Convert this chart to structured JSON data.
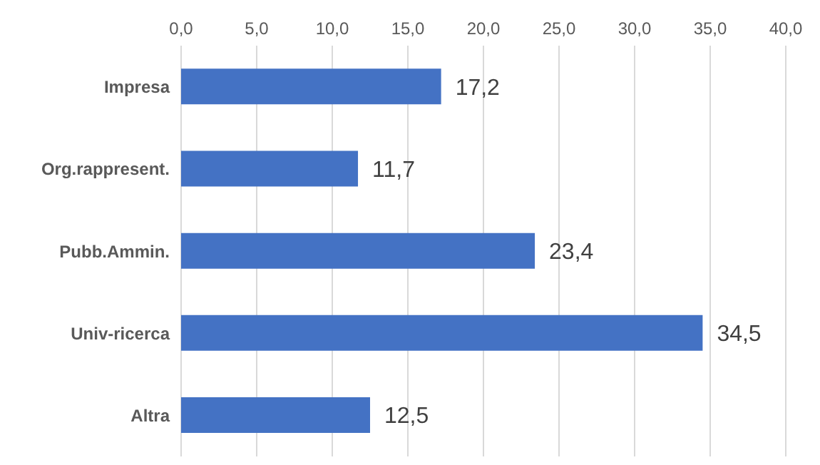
{
  "chart_data": {
    "type": "bar",
    "orientation": "horizontal",
    "categories": [
      "Impresa",
      "Org.rappresent.",
      "Pubb.Ammin.",
      "Univ-ricerca",
      "Altra"
    ],
    "values": [
      17.2,
      11.7,
      23.4,
      34.5,
      12.5
    ],
    "value_labels": [
      "17,2",
      "11,7",
      "23,4",
      "34,5",
      "12,5"
    ],
    "color": "#4472c4",
    "xlim": [
      0,
      40
    ],
    "xticks": [
      {
        "value": 0,
        "label": "0,0"
      },
      {
        "value": 5,
        "label": "5,0"
      },
      {
        "value": 10,
        "label": "10,0"
      },
      {
        "value": 15,
        "label": "15,0"
      },
      {
        "value": 20,
        "label": "20,0"
      },
      {
        "value": 25,
        "label": "25,0"
      },
      {
        "value": 30,
        "label": "30,0"
      },
      {
        "value": 35,
        "label": "35,0"
      },
      {
        "value": 40,
        "label": "40,0"
      }
    ],
    "grid": "x"
  }
}
